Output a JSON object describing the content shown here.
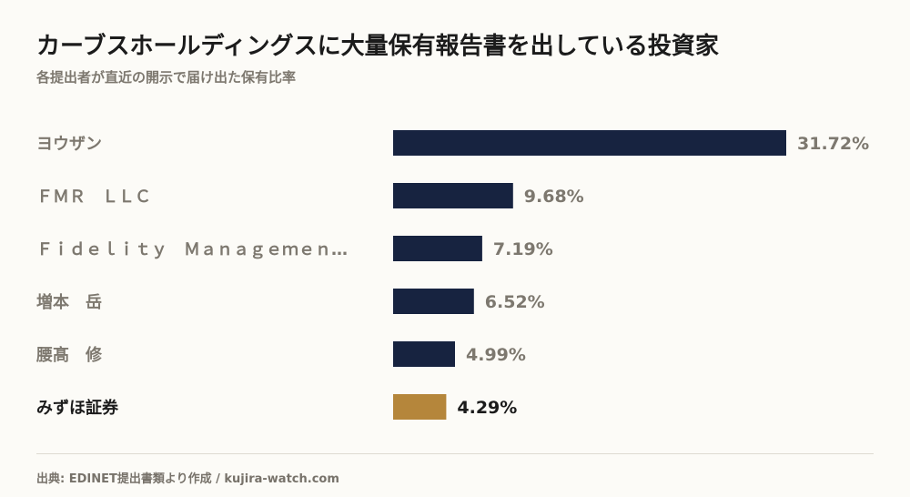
{
  "title": "カーブスホールディングスに大量保有報告書を出している投資家",
  "subtitle": "各提出者が直近の開示で届け出た保有比率",
  "source": "出典: EDINET提出書類より作成 / kujira-watch.com",
  "colors": {
    "bar": "#172340",
    "highlight": "#b5863b",
    "label": "#7d786f",
    "highlight_label": "#1b1b1b",
    "value": "#7d786f",
    "highlight_value": "#1b1b1b"
  },
  "chart_data": {
    "type": "bar",
    "orientation": "horizontal",
    "categories": [
      "ヨウザン",
      "ＦＭＲ　ＬＬＣ",
      "Ｆｉｄｅｌｉｔｙ　Ｍａｎａｇｅｍｅｎ…",
      "増本　岳",
      "腰髙　修",
      "みずほ証券"
    ],
    "values": [
      31.72,
      9.68,
      7.19,
      6.52,
      4.99,
      4.29
    ],
    "value_labels": [
      "31.72%",
      "9.68%",
      "7.19%",
      "6.52%",
      "4.99%",
      "4.29%"
    ],
    "highlight_index": 5,
    "unit": "%",
    "xlim": [
      0,
      31.72
    ],
    "grid": false,
    "legend": "none"
  }
}
